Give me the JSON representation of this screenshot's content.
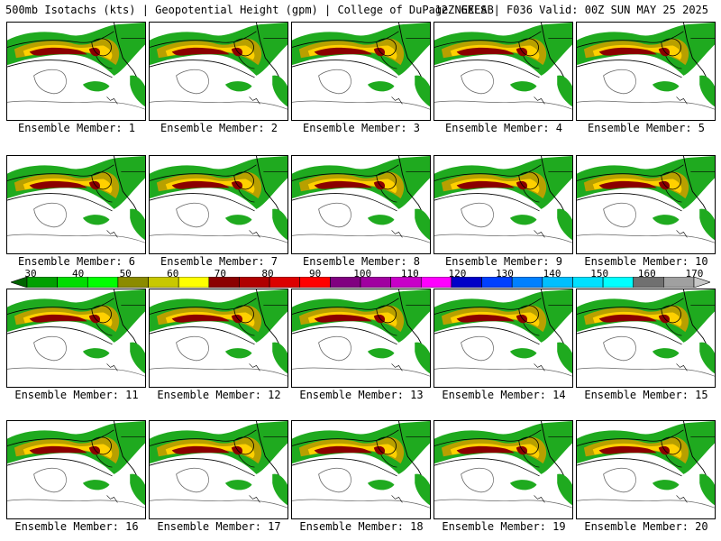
{
  "header": {
    "left": "500mb Isotachs (kts) | Geopotential Height (gpm) | College of DuPage NEXLAB",
    "right": "12Z GEFS | F036 Valid: 00Z SUN MAY 25 2025"
  },
  "panels": [
    "Ensemble Member: 1",
    "Ensemble Member: 2",
    "Ensemble Member: 3",
    "Ensemble Member: 4",
    "Ensemble Member: 5",
    "Ensemble Member: 6",
    "Ensemble Member: 7",
    "Ensemble Member: 8",
    "Ensemble Member: 9",
    "Ensemble Member: 10",
    "Ensemble Member: 11",
    "Ensemble Member: 12",
    "Ensemble Member: 13",
    "Ensemble Member: 14",
    "Ensemble Member: 15",
    "Ensemble Member: 16",
    "Ensemble Member: 17",
    "Ensemble Member: 18",
    "Ensemble Member: 19",
    "Ensemble Member: 20"
  ],
  "colorbar": {
    "ticks": [
      "30",
      "40",
      "50",
      "60",
      "70",
      "80",
      "90",
      "100",
      "110",
      "120",
      "130",
      "140",
      "150",
      "160",
      "170"
    ],
    "colors": [
      "#006400",
      "#00a000",
      "#00dc00",
      "#00ff00",
      "#8b8b00",
      "#c8c800",
      "#ffff00",
      "#8b0000",
      "#b00000",
      "#dc0000",
      "#ff0000",
      "#800080",
      "#a000a0",
      "#c800c8",
      "#ff00ff",
      "#0000c8",
      "#0040ff",
      "#0080ff",
      "#00bfff",
      "#00e0ff",
      "#00ffff",
      "#707070",
      "#a0a0a0",
      "#c8c8c8"
    ]
  }
}
